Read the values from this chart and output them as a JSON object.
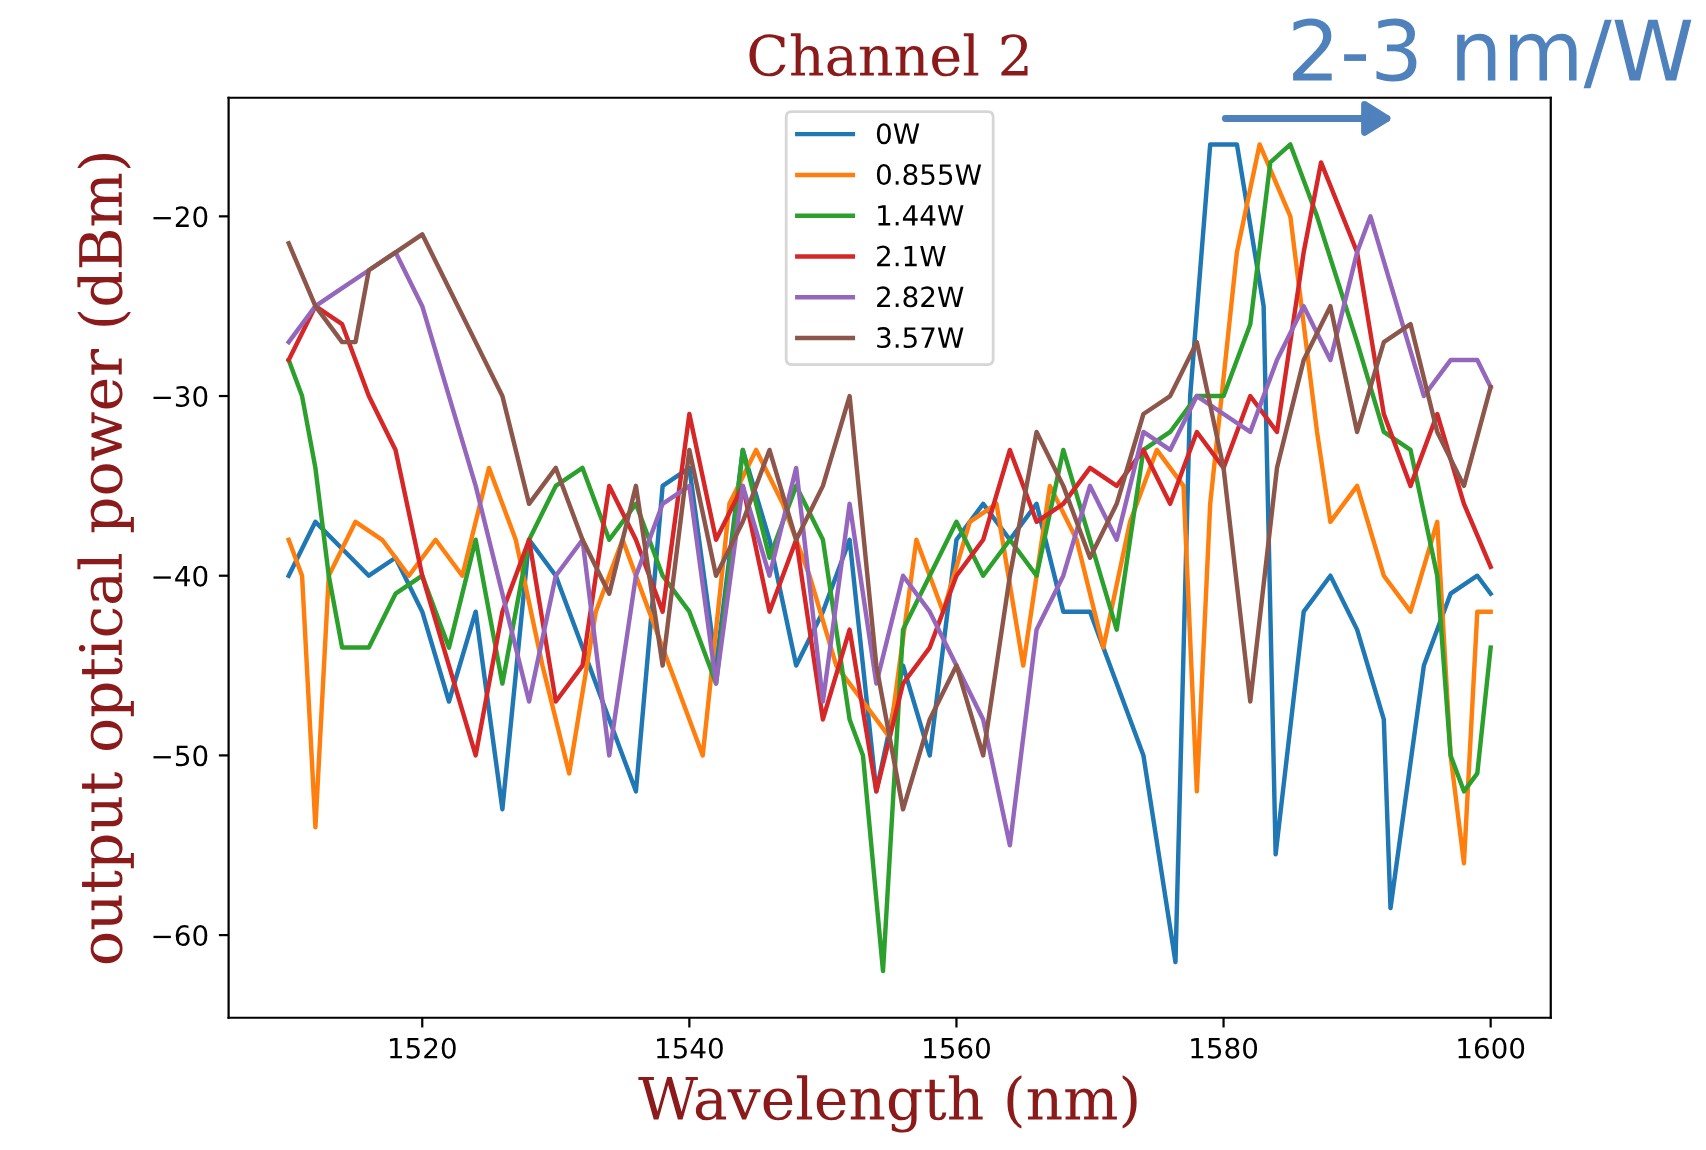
{
  "chart_data": {
    "type": "line",
    "title": "Channel 2",
    "xlabel": "Wavelength (nm)",
    "ylabel": "output optical power (dBm)",
    "annotations": [
      "2-3 nm/W"
    ],
    "xlim": [
      1505.5,
      1604.5
    ],
    "xticks": [
      1520,
      1540,
      1560,
      1580,
      1600
    ],
    "ylim": [
      -64.6,
      -13.4
    ],
    "yticks": [
      -60,
      -50,
      -40,
      -30,
      -20
    ],
    "grid": false,
    "legend": "top",
    "marker": "none",
    "line_style": "solid",
    "series": [
      {
        "name": "0W",
        "color": "#1f77b4",
        "x": [
          1510,
          1512,
          1514,
          1516,
          1518,
          1520,
          1522,
          1524,
          1526,
          1528,
          1530,
          1532,
          1534,
          1536,
          1538,
          1540,
          1542,
          1544,
          1546,
          1548,
          1550,
          1552,
          1554,
          1556,
          1558,
          1560,
          1562,
          1564,
          1566,
          1568,
          1570,
          1572,
          1574,
          1576.4,
          1577.5,
          1579,
          1581,
          1583,
          1583.9,
          1586,
          1588,
          1590,
          1592,
          1592.5,
          1595,
          1597,
          1599,
          1600
        ],
        "values": [
          -40,
          -37,
          -38.5,
          -40,
          -39,
          -42,
          -47,
          -42,
          -53,
          -38,
          -40,
          -44,
          -48,
          -52,
          -35,
          -34,
          -45,
          -33,
          -38,
          -45,
          -42,
          -38,
          -52,
          -45,
          -50,
          -38,
          -36,
          -38,
          -36,
          -42,
          -42,
          -46,
          -50,
          -61.5,
          -30,
          -16,
          -16,
          -25,
          -55.5,
          -42,
          -40,
          -43,
          -48,
          -58.5,
          -45,
          -41,
          -40,
          -41
        ]
      },
      {
        "name": "0.855W",
        "color": "#ff7f0e",
        "x": [
          1510,
          1511,
          1512,
          1513,
          1515,
          1517,
          1519,
          1521,
          1523,
          1525,
          1527,
          1529,
          1531,
          1533,
          1535,
          1537,
          1539,
          1541,
          1543,
          1545,
          1547,
          1549,
          1551,
          1553,
          1555,
          1557,
          1559,
          1561,
          1563,
          1565,
          1567,
          1569,
          1571,
          1573,
          1575,
          1577,
          1578,
          1579,
          1581,
          1582.7,
          1585,
          1587,
          1588,
          1590,
          1592,
          1594,
          1596,
          1597,
          1598,
          1599,
          1600
        ],
        "values": [
          -38,
          -40,
          -54,
          -40,
          -37,
          -38,
          -40,
          -38,
          -40,
          -34,
          -38,
          -45,
          -51,
          -42,
          -38,
          -42,
          -46,
          -50,
          -36,
          -33,
          -36,
          -40,
          -45,
          -47,
          -49,
          -38,
          -42,
          -37,
          -36,
          -45,
          -35,
          -38,
          -44,
          -37,
          -33,
          -35,
          -52,
          -36,
          -22,
          -16,
          -20,
          -32,
          -37,
          -35,
          -40,
          -42,
          -37,
          -50,
          -56,
          -42,
          -42
        ]
      },
      {
        "name": "1.44W",
        "color": "#2ca02c",
        "x": [
          1510,
          1511,
          1512,
          1513,
          1514,
          1516,
          1518,
          1520,
          1522,
          1524,
          1526,
          1528,
          1530,
          1532,
          1534,
          1536,
          1538,
          1540,
          1542,
          1544,
          1546,
          1548,
          1550,
          1552,
          1553,
          1554.5,
          1556,
          1558,
          1560,
          1562,
          1564,
          1566,
          1568,
          1570,
          1572,
          1574,
          1576,
          1578,
          1580,
          1582,
          1583.5,
          1585,
          1587,
          1590,
          1592,
          1594,
          1596,
          1597,
          1598,
          1599,
          1600
        ],
        "values": [
          -28,
          -30,
          -34,
          -40,
          -44,
          -44,
          -41,
          -40,
          -44,
          -38,
          -46,
          -38,
          -35,
          -34,
          -38,
          -36,
          -40,
          -42,
          -46,
          -33,
          -39,
          -35,
          -38,
          -48,
          -50,
          -62,
          -43,
          -40,
          -37,
          -40,
          -38,
          -40,
          -33,
          -38,
          -43,
          -33,
          -32,
          -30,
          -30,
          -26,
          -17,
          -16,
          -20,
          -27,
          -32,
          -33,
          -40,
          -50,
          -52,
          -51,
          -44
        ]
      },
      {
        "name": "2.1W",
        "color": "#d62728",
        "x": [
          1510,
          1512,
          1514,
          1516,
          1518,
          1520,
          1522,
          1524,
          1526,
          1528,
          1530,
          1532,
          1534,
          1536,
          1538,
          1540,
          1542,
          1544,
          1546,
          1548,
          1550,
          1552,
          1554,
          1556,
          1558,
          1560,
          1562,
          1564,
          1566,
          1568,
          1570,
          1572,
          1574,
          1576,
          1578,
          1580,
          1582,
          1584,
          1586,
          1587.3,
          1590,
          1592,
          1594,
          1596,
          1598,
          1600
        ],
        "values": [
          -28,
          -25,
          -26,
          -30,
          -33,
          -40,
          -45,
          -50,
          -42,
          -38,
          -47,
          -45,
          -35,
          -38,
          -42,
          -31,
          -38,
          -35,
          -42,
          -38,
          -48,
          -43,
          -52,
          -46,
          -44,
          -40,
          -38,
          -33,
          -37,
          -36,
          -34,
          -35,
          -33,
          -36,
          -32,
          -34,
          -30,
          -32,
          -22,
          -17,
          -22,
          -31,
          -35,
          -31,
          -36,
          -39.5
        ]
      },
      {
        "name": "2.82W",
        "color": "#9467bd",
        "x": [
          1510,
          1512,
          1514,
          1516,
          1518,
          1520,
          1522,
          1524,
          1526,
          1528,
          1530,
          1532,
          1534,
          1536,
          1538,
          1540,
          1542,
          1544,
          1546,
          1548,
          1550,
          1552,
          1554,
          1556,
          1558,
          1560,
          1562,
          1564,
          1566,
          1568,
          1570,
          1572,
          1574,
          1576,
          1578,
          1580,
          1582,
          1584,
          1586,
          1588,
          1590,
          1591,
          1593,
          1595,
          1597,
          1599,
          1600
        ],
        "values": [
          -27,
          -25,
          -24,
          -23,
          -22,
          -25,
          -30,
          -35,
          -41,
          -47,
          -40,
          -38,
          -50,
          -40,
          -36,
          -35,
          -46,
          -35,
          -40,
          -34,
          -47,
          -36,
          -46,
          -40,
          -42,
          -45,
          -48,
          -55,
          -43,
          -40,
          -35,
          -38,
          -32,
          -33,
          -30,
          -31,
          -32,
          -28,
          -25,
          -28,
          -22,
          -20,
          -25,
          -30,
          -28,
          -28,
          -29.5
        ]
      },
      {
        "name": "3.57W",
        "color": "#8c564b",
        "x": [
          1510,
          1512,
          1514,
          1515,
          1516,
          1518,
          1520,
          1522,
          1524,
          1526,
          1528,
          1530,
          1532,
          1534,
          1536,
          1538,
          1540,
          1542,
          1544,
          1546,
          1548,
          1550,
          1552,
          1554,
          1556,
          1558,
          1560,
          1562,
          1564,
          1566,
          1568,
          1570,
          1572,
          1574,
          1576,
          1578,
          1580,
          1582,
          1584,
          1586,
          1588,
          1590,
          1592,
          1594,
          1596,
          1598,
          1600
        ],
        "values": [
          -21.5,
          -25,
          -27,
          -27,
          -23,
          -22,
          -21,
          -24,
          -27,
          -30,
          -36,
          -34,
          -38,
          -41,
          -35,
          -45,
          -33,
          -40,
          -37,
          -33,
          -38,
          -35,
          -30,
          -45,
          -53,
          -48,
          -45,
          -50,
          -40,
          -32,
          -35,
          -39,
          -36,
          -31,
          -30,
          -27,
          -34,
          -47,
          -34,
          -28,
          -25,
          -32,
          -27,
          -26,
          -32,
          -35,
          -29.5
        ]
      }
    ]
  }
}
